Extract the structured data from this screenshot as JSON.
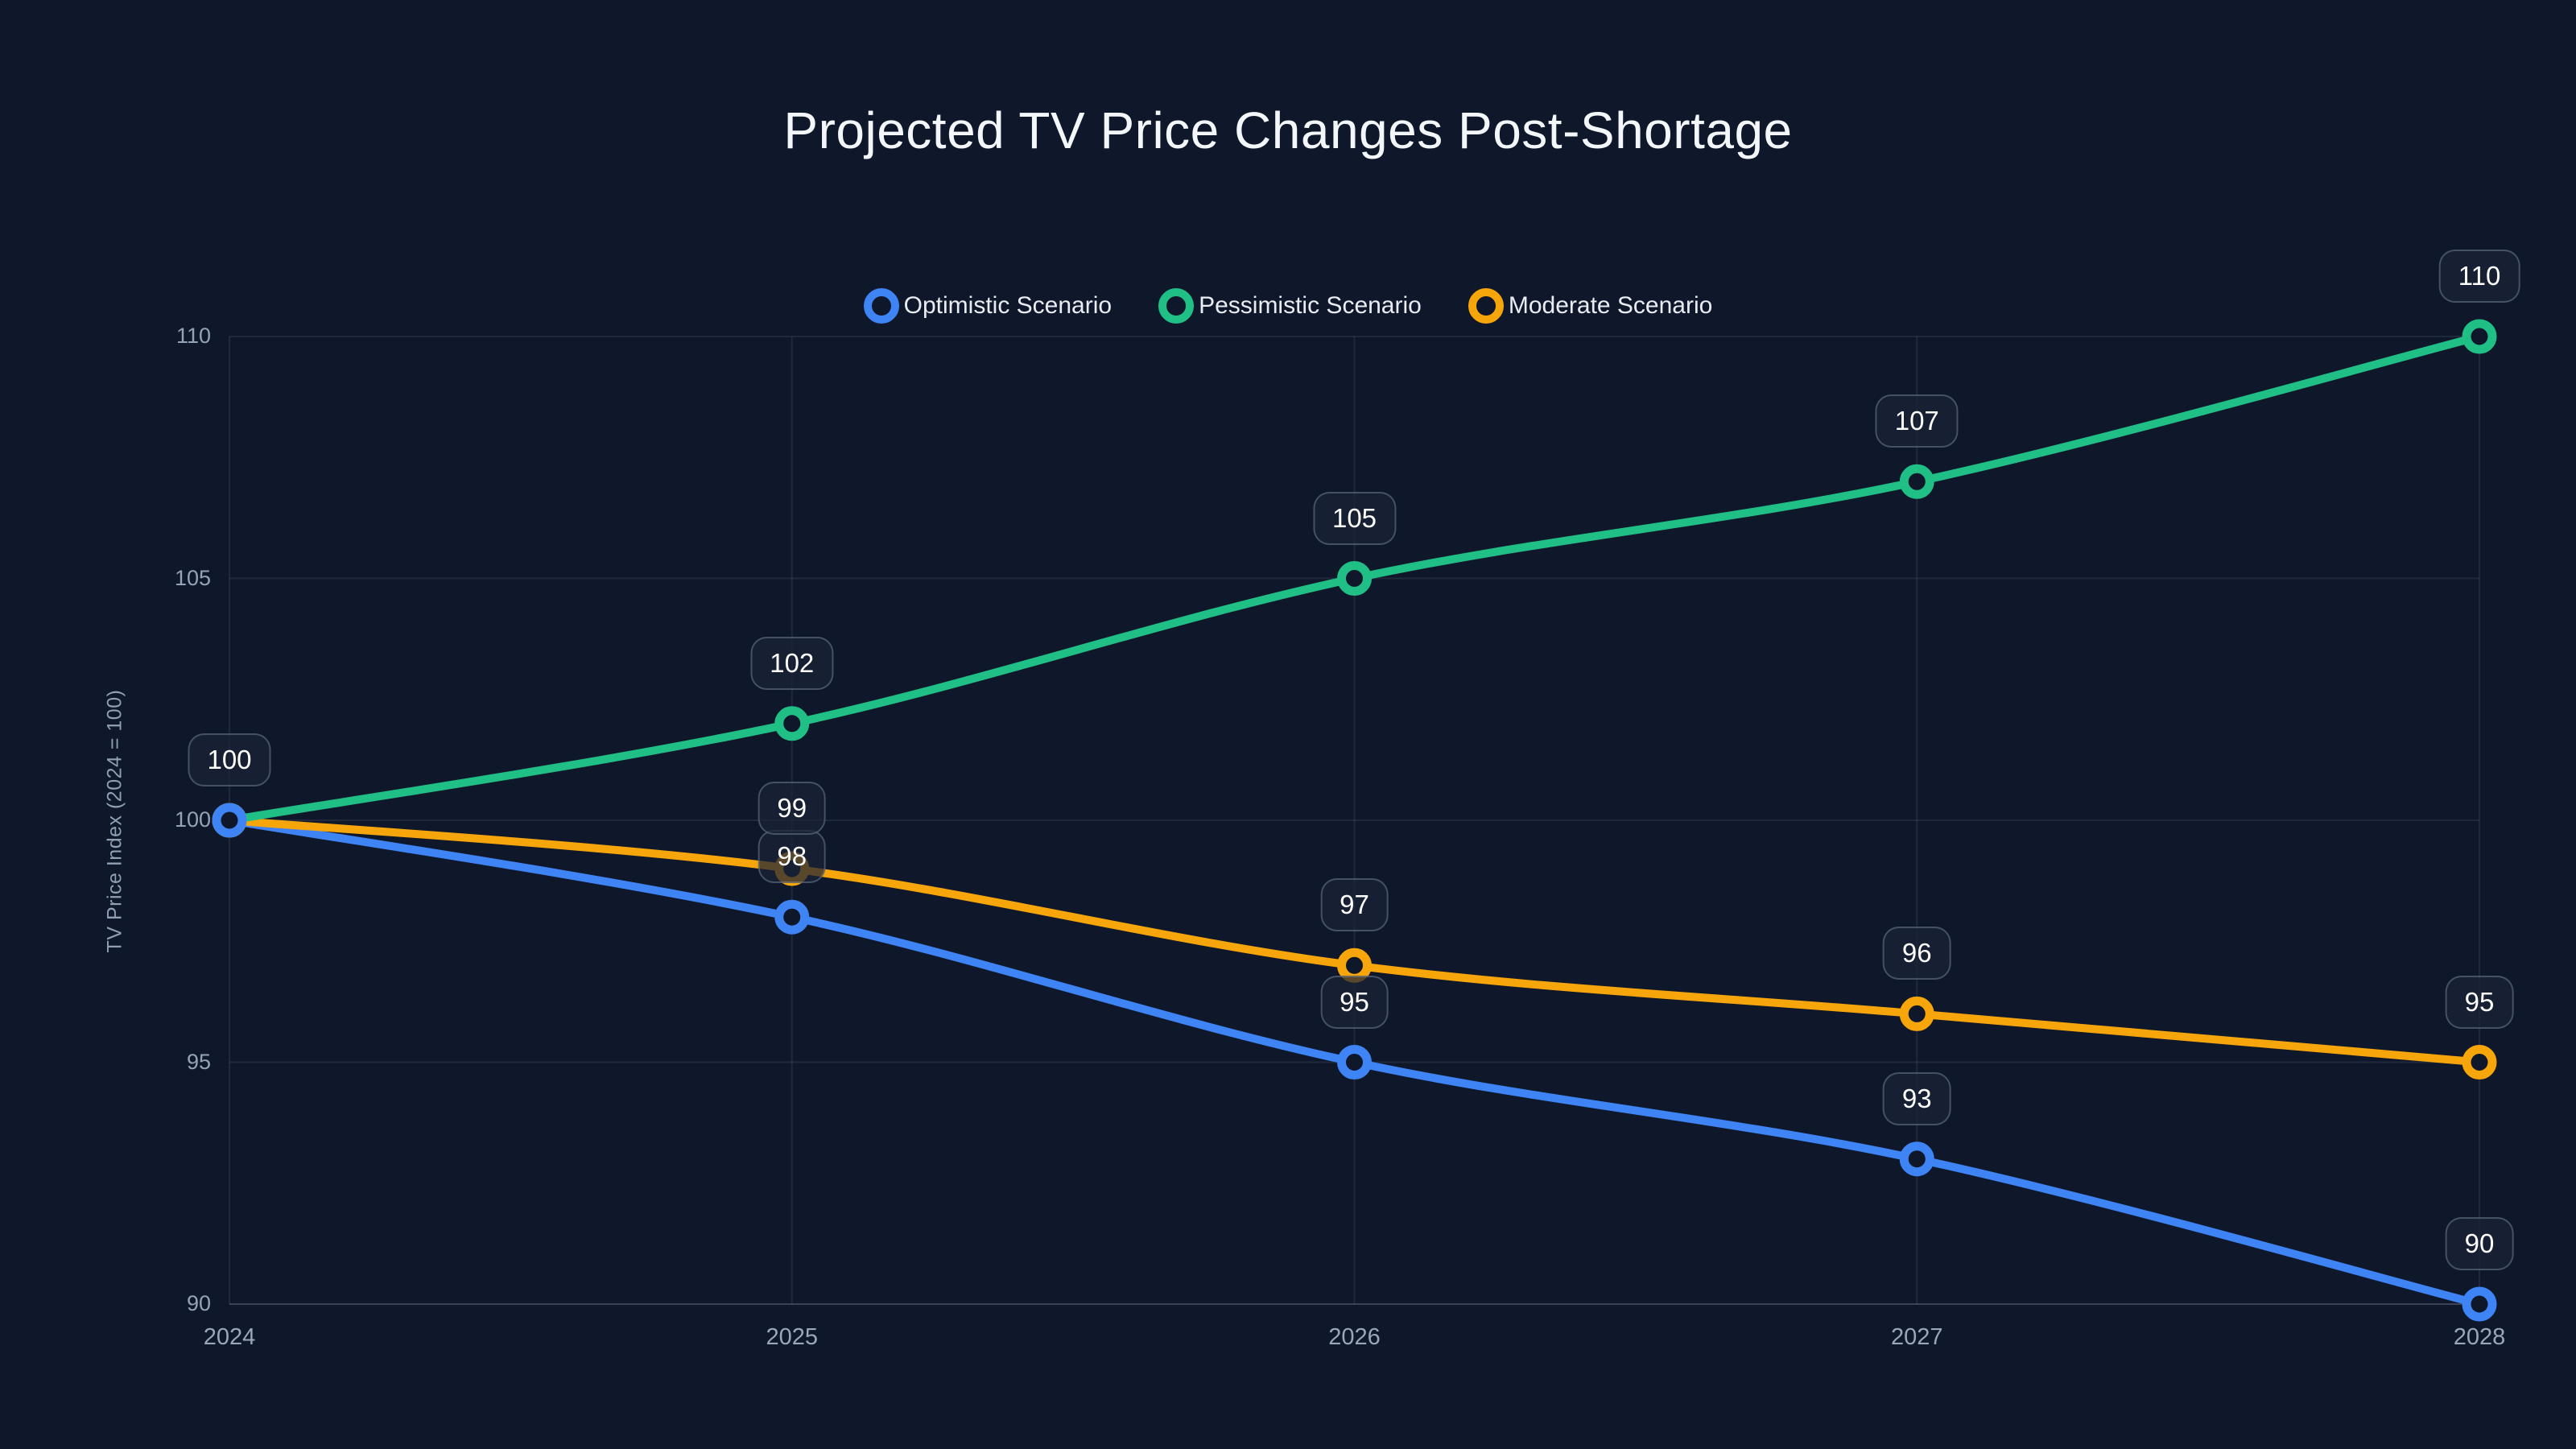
{
  "theme": {
    "background": "#0f172a",
    "grid_color": "rgba(148,163,184,0.13)",
    "axis_color": "rgba(148,163,184,0.32)",
    "tick_color": "#94a3b8",
    "title_color": "#f4f7fa",
    "label_box_border": "rgba(148,163,184,0.38)",
    "label_box_bg": "rgba(26,35,54,0.72)"
  },
  "chart_data": {
    "type": "line",
    "title": "Projected TV Price Changes Post-Shortage",
    "xlabel": "",
    "ylabel": "TV Price Index (2024 = 100)",
    "categories": [
      "2024",
      "2025",
      "2026",
      "2027",
      "2028"
    ],
    "series": [
      {
        "name": "Optimistic Scenario",
        "color": "#3e84f4",
        "values": [
          100,
          98,
          95,
          93,
          90
        ]
      },
      {
        "name": "Pessimistic Scenario",
        "color": "#20bf86",
        "values": [
          100,
          102,
          105,
          107,
          110
        ]
      },
      {
        "name": "Moderate Scenario",
        "color": "#f6a50b",
        "values": [
          100,
          99,
          97,
          96,
          95
        ]
      }
    ],
    "ylim": [
      90,
      110
    ],
    "yticks": [
      90,
      95,
      100,
      105,
      110
    ],
    "grid": true,
    "legend_position": "top",
    "point_labels_visible": true,
    "line_style": "smooth"
  }
}
